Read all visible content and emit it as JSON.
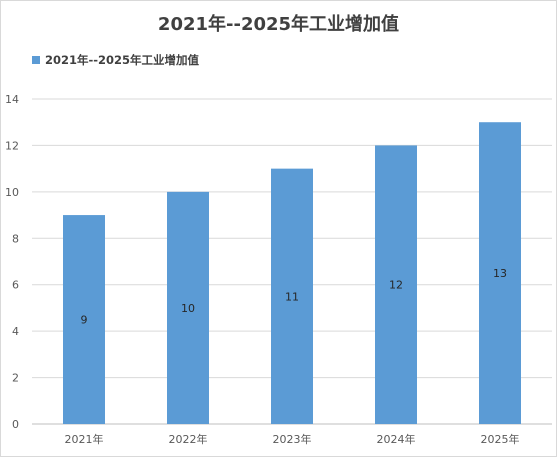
{
  "chart_data": {
    "type": "bar",
    "title": "2021年--2025年工业增加值",
    "categories": [
      "2021年",
      "2022年",
      "2023年",
      "2024年",
      "2025年"
    ],
    "series": [
      {
        "name": "2021年--2025年工业增加值",
        "values": [
          9,
          10,
          11,
          12,
          13
        ],
        "color": "#5b9bd5"
      }
    ],
    "xlabel": "",
    "ylabel": "",
    "ylim": [
      0,
      14
    ],
    "yticks": [
      0,
      2,
      4,
      6,
      8,
      10,
      12,
      14
    ],
    "grid": true,
    "legend_position": "top-left",
    "data_labels": true
  }
}
